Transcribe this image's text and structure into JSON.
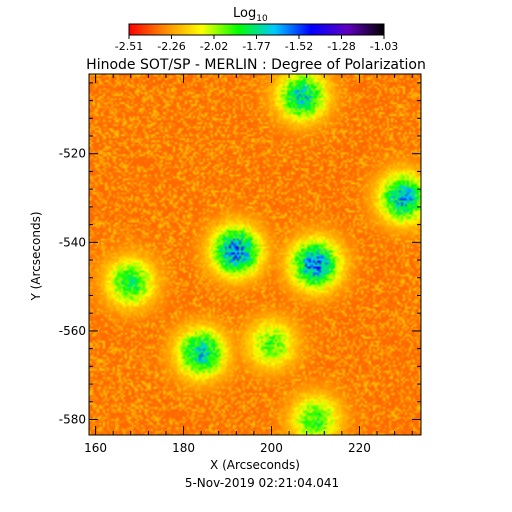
{
  "chart_data": {
    "type": "heatmap",
    "title": "Hinode SOT/SP - MERLIN : Degree of Polarization",
    "xlabel": "X (Arcseconds)",
    "ylabel": "Y (Arcseconds)",
    "footer": "5-Nov-2019 02:21:04.041",
    "xlim": [
      158.5,
      234
    ],
    "ylim": [
      -583.5,
      -502
    ],
    "xticks": [
      160,
      180,
      200,
      220
    ],
    "yticks": [
      -580,
      -560,
      -540,
      -520
    ],
    "xtick_labels": [
      "160",
      "180",
      "200",
      "220"
    ],
    "ytick_labels": [
      "-580",
      "-560",
      "-540",
      "-520"
    ],
    "colorbar": {
      "title": "Log",
      "title_sub": "10",
      "range": [
        -2.51,
        -1.03
      ],
      "tick_labels": [
        "-2.51",
        "-2.26",
        "-2.02",
        "-1.77",
        "-1.52",
        "-1.28",
        "-1.03"
      ],
      "colormap": [
        "#ff0000",
        "#ff8c00",
        "#ffff00",
        "#00ff00",
        "#00c8ff",
        "#0000ff",
        "#6000c0",
        "#000000"
      ]
    },
    "background_level": -2.35,
    "regions": [
      {
        "x": 192,
        "y": -542,
        "level": -1.45
      },
      {
        "x": 210,
        "y": -545,
        "level": -1.45
      },
      {
        "x": 230,
        "y": -530,
        "level": -1.55
      },
      {
        "x": 207,
        "y": -507,
        "level": -1.6
      },
      {
        "x": 184,
        "y": -565,
        "level": -1.6
      },
      {
        "x": 168,
        "y": -549,
        "level": -1.75
      },
      {
        "x": 210,
        "y": -580,
        "level": -1.8
      },
      {
        "x": 200,
        "y": -563,
        "level": -1.85
      }
    ]
  }
}
